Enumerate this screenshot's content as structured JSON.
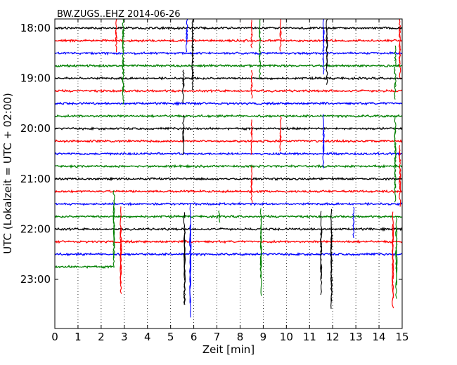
{
  "chart_data": {
    "type": "line",
    "title": "BW.ZUGS..EHZ 2014-06-26",
    "xlabel": "Zeit  [min]",
    "ylabel": "UTC (Lokalzeit = UTC + 02:00)",
    "xlim": [
      0,
      15
    ],
    "x_ticks": [
      "0",
      "1",
      "2",
      "3",
      "4",
      "5",
      "6",
      "7",
      "8",
      "9",
      "10",
      "11",
      "12",
      "13",
      "14",
      "15"
    ],
    "y_ticks": [
      {
        "label": "18:00",
        "trace_index": 0
      },
      {
        "label": "19:00",
        "trace_index": 4
      },
      {
        "label": "20:00",
        "trace_index": 8
      },
      {
        "label": "21:00",
        "trace_index": 12
      },
      {
        "label": "22:00",
        "trace_index": 16
      },
      {
        "label": "23:00",
        "trace_index": 20
      }
    ],
    "grid": "vertical-dotted",
    "trace_interval_min": 15,
    "color_cycle": [
      "#000000",
      "#ff0000",
      "#0000ff",
      "#008000"
    ],
    "traces": [
      {
        "start": "18:00",
        "color": "#000000",
        "end_min": 15
      },
      {
        "start": "18:15",
        "color": "#ff0000",
        "end_min": 15
      },
      {
        "start": "18:30",
        "color": "#0000ff",
        "end_min": 15
      },
      {
        "start": "18:45",
        "color": "#008000",
        "end_min": 15
      },
      {
        "start": "19:00",
        "color": "#000000",
        "end_min": 15
      },
      {
        "start": "19:15",
        "color": "#ff0000",
        "end_min": 15
      },
      {
        "start": "19:30",
        "color": "#0000ff",
        "end_min": 15
      },
      {
        "start": "19:45",
        "color": "#008000",
        "end_min": 15
      },
      {
        "start": "20:00",
        "color": "#000000",
        "end_min": 15
      },
      {
        "start": "20:15",
        "color": "#ff0000",
        "end_min": 15
      },
      {
        "start": "20:30",
        "color": "#0000ff",
        "end_min": 15
      },
      {
        "start": "20:45",
        "color": "#008000",
        "end_min": 15
      },
      {
        "start": "21:00",
        "color": "#000000",
        "end_min": 15
      },
      {
        "start": "21:15",
        "color": "#ff0000",
        "end_min": 15
      },
      {
        "start": "21:30",
        "color": "#0000ff",
        "end_min": 15
      },
      {
        "start": "21:45",
        "color": "#008000",
        "end_min": 15
      },
      {
        "start": "22:00",
        "color": "#000000",
        "end_min": 15
      },
      {
        "start": "22:15",
        "color": "#ff0000",
        "end_min": 15
      },
      {
        "start": "22:30",
        "color": "#0000ff",
        "end_min": 15
      },
      {
        "start": "22:45",
        "color": "#008000",
        "end_min": 2.6
      }
    ],
    "spikes": [
      {
        "min": 2.65,
        "traces": [
          0,
          1
        ],
        "amp": 0.9,
        "color": "#ff0000"
      },
      {
        "min": 2.95,
        "traces": [
          0,
          1,
          2,
          3,
          4,
          5
        ],
        "amp": 1.1,
        "color": "#008000"
      },
      {
        "min": 5.55,
        "traces": [
          4,
          5,
          8,
          9
        ],
        "amp": 1.2,
        "color": "#000000"
      },
      {
        "min": 5.7,
        "traces": [
          0,
          1
        ],
        "amp": 1.1,
        "color": "#0000ff"
      },
      {
        "min": 5.95,
        "traces": [
          0,
          1,
          2,
          3,
          4
        ],
        "amp": 1.4,
        "color": "#000000"
      },
      {
        "min": 8.5,
        "traces": [
          0,
          1,
          4,
          5,
          8,
          9,
          12,
          13
        ],
        "amp": 1.0,
        "color": "#ff0000"
      },
      {
        "min": 8.85,
        "traces": [
          0,
          1,
          2,
          3
        ],
        "amp": 1.0,
        "color": "#008000"
      },
      {
        "min": 9.75,
        "traces": [
          0,
          1,
          8,
          9
        ],
        "amp": 0.9,
        "color": "#ff0000"
      },
      {
        "min": 11.6,
        "traces": [
          0,
          1,
          2,
          3,
          8,
          9,
          10
        ],
        "amp": 1.2,
        "color": "#0000ff"
      },
      {
        "min": 11.75,
        "traces": [
          0,
          1,
          2,
          3
        ],
        "amp": 1.4,
        "color": "#000000"
      },
      {
        "min": 14.7,
        "traces": [
          2,
          3,
          4,
          5,
          8,
          9,
          10,
          11,
          12,
          13
        ],
        "amp": 1.0,
        "color": "#008000"
      },
      {
        "min": 14.9,
        "traces": [
          0,
          1,
          2,
          3,
          10,
          11,
          12,
          13
        ],
        "amp": 1.2,
        "color": "#ff0000"
      },
      {
        "min": 7.1,
        "traces": [
          15
        ],
        "amp": 0.6,
        "color": "#008000"
      },
      {
        "min": 12.9,
        "traces": [
          15,
          16
        ],
        "amp": 0.8,
        "color": "#0000ff"
      },
      {
        "min": 2.55,
        "traces": [
          14,
          15,
          16,
          17,
          18
        ],
        "amp": 1.3,
        "color": "#008000"
      },
      {
        "min": 2.85,
        "traces": [
          16,
          17,
          18,
          19,
          20
        ],
        "amp": 1.8,
        "color": "#ff0000"
      },
      {
        "min": 5.6,
        "traces": [
          16,
          17,
          18,
          19,
          20,
          21
        ],
        "amp": 1.8,
        "color": "#000000"
      },
      {
        "min": 5.85,
        "traces": [
          16,
          17,
          18,
          19,
          20,
          21
        ],
        "amp": 2.0,
        "color": "#0000ff"
      },
      {
        "min": 8.9,
        "traces": [
          16,
          17,
          18,
          19,
          20
        ],
        "amp": 1.6,
        "color": "#008000"
      },
      {
        "min": 11.5,
        "traces": [
          16,
          17,
          18,
          19,
          20
        ],
        "amp": 1.6,
        "color": "#000000"
      },
      {
        "min": 11.95,
        "traces": [
          16,
          17,
          18,
          19,
          20,
          21
        ],
        "amp": 1.9,
        "color": "#000000"
      },
      {
        "min": 14.6,
        "traces": [
          16,
          17,
          18,
          19,
          20,
          21
        ],
        "amp": 1.7,
        "color": "#ff0000"
      },
      {
        "min": 14.75,
        "traces": [
          16,
          17,
          18,
          19,
          20
        ],
        "amp": 1.4,
        "color": "#008000"
      }
    ]
  }
}
